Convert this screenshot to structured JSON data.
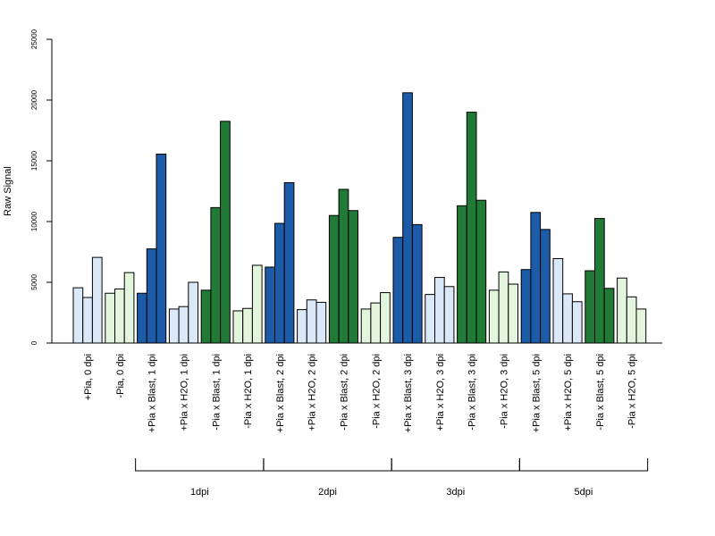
{
  "chart_data": {
    "type": "bar",
    "ylabel": "Raw Signal",
    "ylim": [
      0,
      25000
    ],
    "yticks": [
      0,
      5000,
      10000,
      15000,
      20000,
      25000
    ],
    "grid": false,
    "legend": "none",
    "categories": [
      "+Pia, 0 dpi",
      "-Pia, 0 dpi",
      "+Pia x Blast, 1 dpi",
      "+Pia x H2O, 1 dpi",
      "-Pia x Blast, 1 dpi",
      "-Pia x H2O, 1 dpi",
      "+Pia x Blast, 2 dpi",
      "+Pia x H2O, 2 dpi",
      "-Pia x Blast, 2 dpi",
      "-Pia x H2O, 2 dpi",
      "+Pia x Blast, 3 dpi",
      "+Pia x H2O, 3 dpi",
      "-Pia x Blast, 3 dpi",
      "-Pia x H2O, 3 dpi",
      "+Pia x Blast, 5 dpi",
      "+Pia x H2O, 5 dpi",
      "-Pia x Blast, 5 dpi",
      "-Pia x H2O, 5 dpi"
    ],
    "values": [
      [
        4550,
        3750,
        7050
      ],
      [
        4100,
        4450,
        5800
      ],
      [
        4100,
        7750,
        15550
      ],
      [
        2800,
        3000,
        5000
      ],
      [
        4350,
        11150,
        18250
      ],
      [
        2650,
        2850,
        6400
      ],
      [
        6250,
        9850,
        13200
      ],
      [
        2750,
        3550,
        3350
      ],
      [
        10500,
        12650,
        10900
      ],
      [
        2800,
        3300,
        4150
      ],
      [
        8700,
        20600,
        9750
      ],
      [
        4000,
        5400,
        4650
      ],
      [
        11300,
        19000,
        11750
      ],
      [
        4350,
        5850,
        4850
      ],
      [
        6050,
        10750,
        9350
      ],
      [
        6950,
        4050,
        3400
      ],
      [
        5950,
        10250,
        4500
      ],
      [
        5350,
        3800,
        2800
      ]
    ],
    "bar_colors": {
      "+Pia control": "#dbe8f7",
      "-Pia control": "#e3f5dc",
      "+Pia Blast": "#1b5ba7",
      "-Pia Blast": "#217a35"
    },
    "category_color_keys": [
      "+Pia control",
      "-Pia control",
      "+Pia Blast",
      "+Pia control",
      "-Pia Blast",
      "-Pia control",
      "+Pia Blast",
      "+Pia control",
      "-Pia Blast",
      "-Pia control",
      "+Pia Blast",
      "+Pia control",
      "-Pia Blast",
      "-Pia control",
      "+Pia Blast",
      "+Pia control",
      "-Pia Blast",
      "-Pia control"
    ],
    "groups": [
      {
        "label": "1dpi",
        "from": 2,
        "to": 5
      },
      {
        "label": "2dpi",
        "from": 6,
        "to": 9
      },
      {
        "label": "3dpi",
        "from": 10,
        "to": 13
      },
      {
        "label": "5dpi",
        "from": 14,
        "to": 17
      }
    ]
  }
}
